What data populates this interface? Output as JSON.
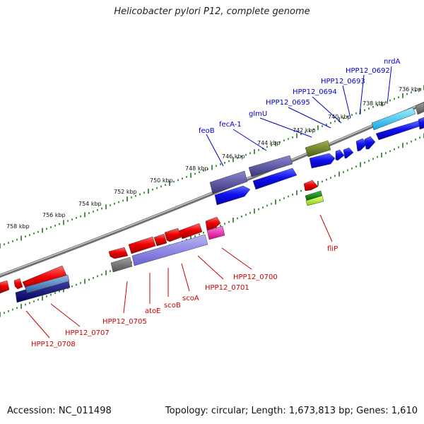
{
  "title": "Helicobacter pylori P12, complete genome",
  "footer": {
    "accession": "Accession: NC_011498",
    "stats": "Topology: circular; Length: 1,673,813 bp; Genes: 1,610"
  },
  "scale_labels": [
    "736 kbp",
    "738 kbp",
    "740 kbp",
    "742 kbp",
    "744 kbp",
    "746 kbp",
    "748 kbp",
    "750 kbp",
    "752 kbp",
    "754 kbp",
    "756 kbp",
    "758 kbp"
  ],
  "forward_labels": [
    "nrdA",
    "HPP12_0692",
    "HPP12_0693",
    "HPP12_0694",
    "HPP12_0695",
    "glmU",
    "fecA-1",
    "feoB"
  ],
  "reverse_labels": [
    "fliP",
    "HPP12_0700",
    "HPP12_0701",
    "scoA",
    "scoB",
    "atoE",
    "HPP12_0705",
    "HPP12_0707",
    "HPP12_0708"
  ],
  "colors": {
    "forward_label": "#0000cc",
    "reverse_label": "#cc0000",
    "backbone": "#888888",
    "tick": "#1a7a1a",
    "forward_gene": "#0000ee",
    "reverse_gene": "#ee0000"
  }
}
